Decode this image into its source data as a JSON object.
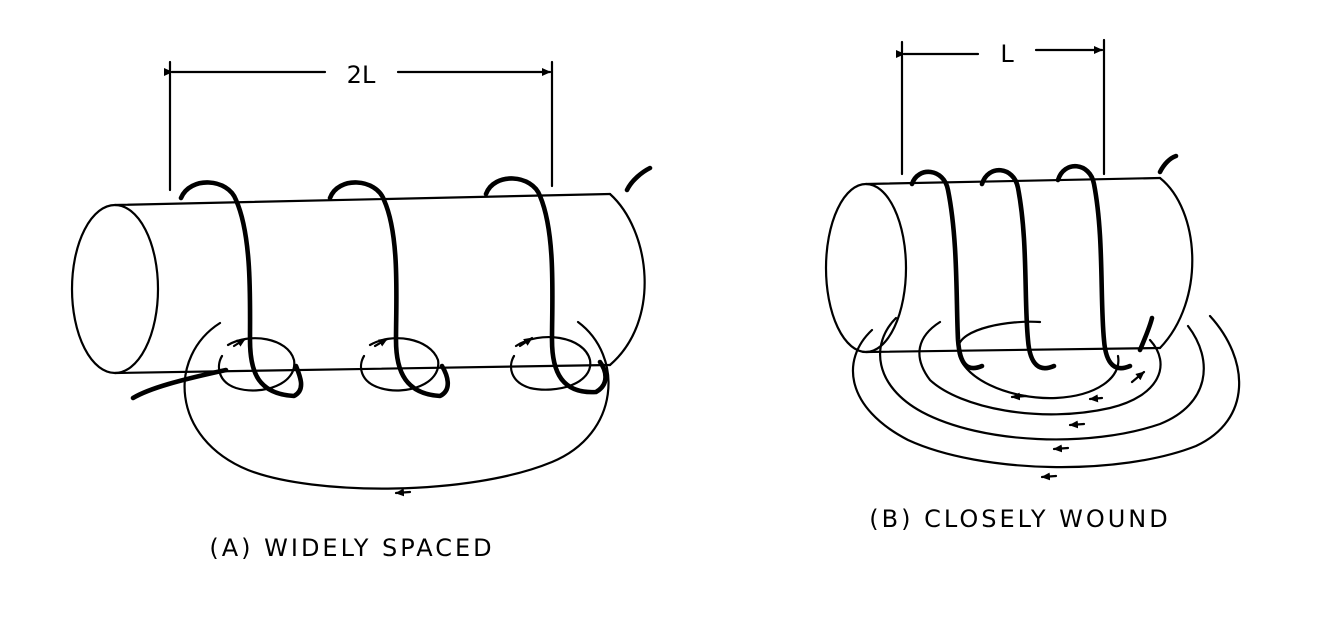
{
  "panels": [
    {
      "id": "A",
      "caption": "(A) WIDELY SPACED",
      "dimension_label": "2L"
    },
    {
      "id": "B",
      "caption": "(B) CLOSELY WOUND",
      "dimension_label": "L"
    }
  ],
  "colors": {
    "ink": "#000000",
    "background": "#ffffff"
  }
}
